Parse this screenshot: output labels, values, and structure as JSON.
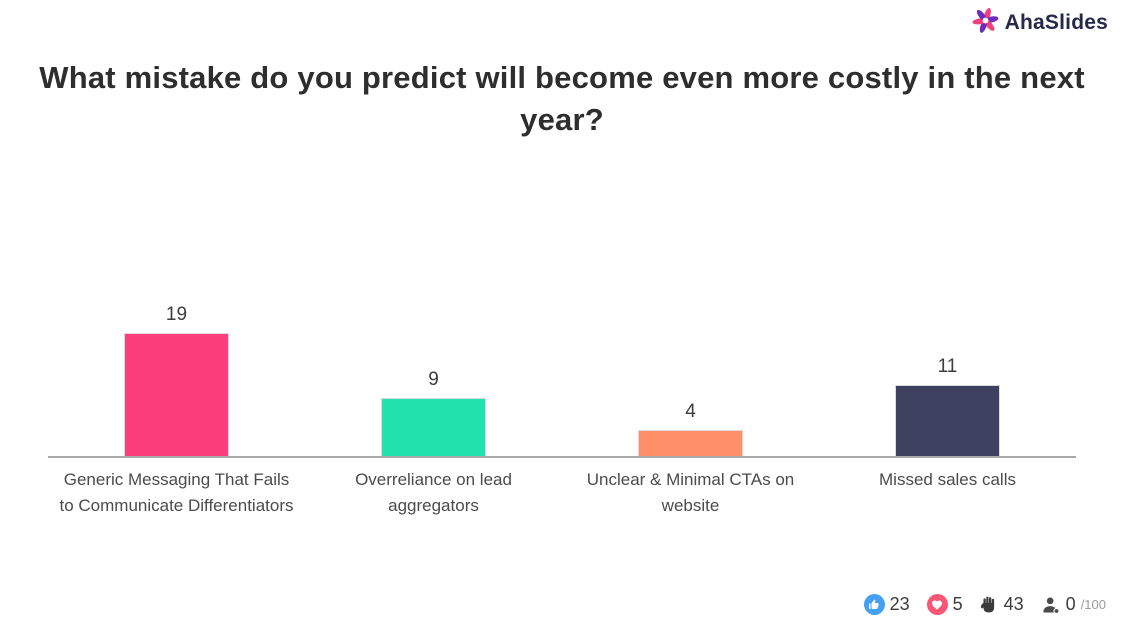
{
  "logo": {
    "name": "AhaSlides"
  },
  "slide": {
    "title": "What mistake do you predict will become even more costly in the next year?"
  },
  "chart_data": {
    "type": "bar",
    "title": "What mistake do you predict will become even more costly in the next year?",
    "categories": [
      "Generic Messaging That Fails to Communicate Differentiators",
      "Overreliance on lead aggregators",
      "Unclear & Minimal CTAs on website",
      "Missed sales calls"
    ],
    "values": [
      19,
      9,
      4,
      11
    ],
    "bar_colors": [
      "#FB3D7C",
      "#21E2AC",
      "#FE8F69",
      "#3E4060"
    ],
    "value_labels_shown": true,
    "xlabel": "",
    "ylabel": "",
    "ylim": [
      0,
      19
    ],
    "grid": false,
    "legend": "none",
    "axis_line_color": "#A9A9A9"
  },
  "footer": {
    "likes_count": "23",
    "hearts_count": "5",
    "raised_hands_count": "43",
    "participants_count": "0",
    "participants_max": "/100"
  }
}
